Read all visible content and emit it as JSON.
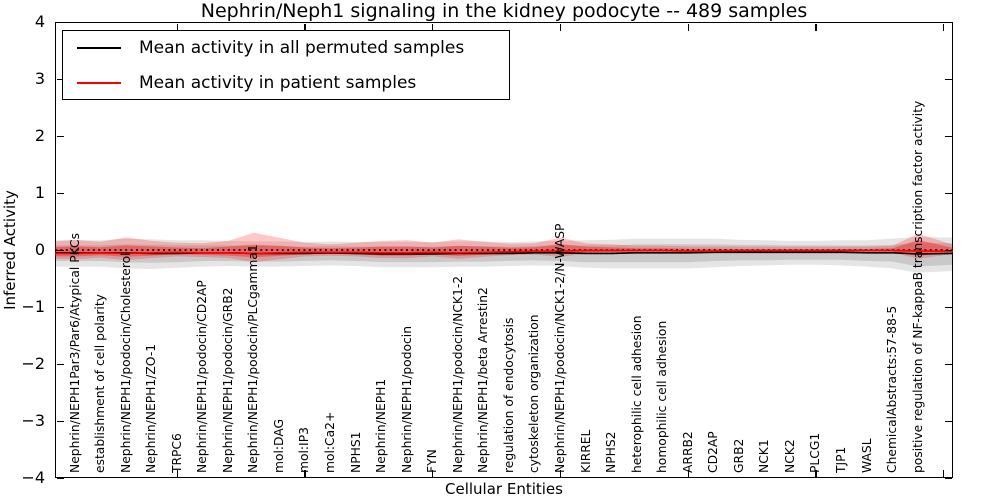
{
  "figure": {
    "title": "Nephrin/Neph1 signaling in the kidney podocyte -- 489 samples",
    "xlabel": "Cellular Entities",
    "ylabel": "Inferred Activity"
  },
  "legend": {
    "items": [
      {
        "label": "Mean activity in all permuted samples",
        "color": "#000000"
      },
      {
        "label": "Mean activity in patient samples",
        "color": "#ff0000"
      }
    ]
  },
  "chart_data": {
    "type": "line",
    "title": "Nephrin/Neph1 signaling in the kidney podocyte -- 489 samples",
    "xlabel": "Cellular Entities",
    "ylabel": "Inferred Activity",
    "ylim": [
      -4,
      4
    ],
    "grid": false,
    "legend_position": "upper left",
    "y_ticks": [
      4,
      3,
      2,
      1,
      0,
      -1,
      -2,
      -3,
      -4
    ],
    "y_tick_labels": [
      "4",
      "3",
      "2",
      "1",
      "0",
      "−1",
      "−2",
      "−3",
      "−4"
    ],
    "x_tick_values": [
      5,
      10,
      15,
      20,
      25,
      30,
      35
    ],
    "zero_line": 0,
    "categories": [
      "Nephrin/NEPH1Par3/Par6/Atypical PKCs",
      "establishment of cell polarity",
      "Nephrin/NEPH1/podocin/Cholesterol",
      "Nephrin/NEPH1/ZO-1",
      "TRPC6",
      "Nephrin/NEPH1/podocin/CD2AP",
      "Nephrin/NEPH1/podocin/GRB2",
      "Nephrin/NEPH1/podocin/PLCgamma1",
      "mol:DAG",
      "mol:IP3",
      "mol:Ca2+",
      "NPHS1",
      "Nephrin/NEPH1",
      "Nephrin/NEPH1/podocin",
      "FYN",
      "Nephrin/NEPH1/podocin/NCK1-2",
      "Nephrin/NEPH1/beta Arrestin2",
      "regulation of endocytosis",
      "cytoskeleton organization",
      "Nephrin/NEPH1/podocin/NCK1-2/N-WASP",
      "KIRREL",
      "NPHS2",
      "heterophilic cell adhesion",
      "homophilic cell adhesion",
      "ARRB2",
      "CD2AP",
      "GRB2",
      "NCK1",
      "NCK2",
      "PLCG1",
      "TJP1",
      "WASL",
      "ChemicalAbstracts:57-88-5",
      "positive regulation of NF-kappaB transcription factor activity"
    ],
    "series": [
      {
        "name": "Mean activity in all permuted samples",
        "color": "#000000",
        "values": [
          -0.05,
          -0.05,
          -0.05,
          -0.06,
          -0.06,
          -0.05,
          -0.05,
          -0.06,
          -0.06,
          -0.06,
          -0.05,
          -0.06,
          -0.07,
          -0.07,
          -0.07,
          -0.06,
          -0.06,
          -0.06,
          -0.05,
          -0.05,
          -0.06,
          -0.06,
          -0.05,
          -0.05,
          -0.05,
          -0.04,
          -0.04,
          -0.04,
          -0.04,
          -0.04,
          -0.04,
          -0.05,
          -0.05,
          -0.07
        ]
      },
      {
        "name": "Mean activity in patient samples",
        "color": "#ff0000",
        "values": [
          -0.06,
          -0.05,
          -0.06,
          -0.05,
          -0.04,
          -0.05,
          -0.05,
          -0.06,
          -0.05,
          -0.04,
          -0.04,
          -0.04,
          -0.05,
          -0.05,
          -0.04,
          -0.05,
          -0.04,
          -0.03,
          -0.02,
          -0.02,
          -0.01,
          -0.01,
          -0.01,
          -0.01,
          -0.02,
          -0.02,
          -0.01,
          -0.01,
          -0.01,
          -0.01,
          -0.01,
          -0.01,
          -0.01,
          -0.02
        ]
      }
    ],
    "bands": [
      {
        "name": "permuted-outer-band",
        "center": 0,
        "color": "rgba(0,0,0,0.10)",
        "up_scale": 1.0,
        "down_scale": 1.1,
        "half_widths": [
          0.22,
          0.22,
          0.25,
          0.25,
          0.23,
          0.22,
          0.21,
          0.21,
          0.21,
          0.2,
          0.2,
          0.2,
          0.21,
          0.21,
          0.21,
          0.21,
          0.21,
          0.2,
          0.2,
          0.21,
          0.23,
          0.24,
          0.25,
          0.25,
          0.25,
          0.24,
          0.22,
          0.21,
          0.2,
          0.2,
          0.21,
          0.22,
          0.25,
          0.3
        ],
        "edge_left": 0.22,
        "edge_right": 0.28
      },
      {
        "name": "permuted-inner-band",
        "center": 0,
        "color": "rgba(0,0,0,0.12)",
        "up_scale": 1.0,
        "down_scale": 1.1,
        "half_widths": [
          0.13,
          0.13,
          0.15,
          0.15,
          0.14,
          0.13,
          0.13,
          0.13,
          0.13,
          0.12,
          0.12,
          0.12,
          0.13,
          0.13,
          0.13,
          0.13,
          0.13,
          0.12,
          0.12,
          0.13,
          0.14,
          0.14,
          0.15,
          0.15,
          0.15,
          0.14,
          0.13,
          0.13,
          0.12,
          0.12,
          0.12,
          0.13,
          0.14,
          0.2
        ],
        "edge_left": 0.13,
        "edge_right": 0.18
      },
      {
        "name": "patient-outer-band",
        "center": 1,
        "color": "rgba(255,0,0,0.22)",
        "up_scale": 1.4,
        "down_scale": 0.6,
        "half_widths": [
          0.17,
          0.14,
          0.2,
          0.15,
          0.12,
          0.12,
          0.15,
          0.26,
          0.19,
          0.12,
          0.1,
          0.12,
          0.15,
          0.16,
          0.12,
          0.17,
          0.13,
          0.1,
          0.1,
          0.17,
          0.09,
          0.08,
          0.06,
          0.06,
          0.06,
          0.06,
          0.05,
          0.05,
          0.05,
          0.05,
          0.05,
          0.05,
          0.06,
          0.22
        ],
        "edge_left": 0.15,
        "edge_right": 0.08
      },
      {
        "name": "patient-inner-band",
        "center": 1,
        "color": "rgba(255,0,0,0.35)",
        "up_scale": 1.4,
        "down_scale": 0.6,
        "half_widths": [
          0.09,
          0.07,
          0.1,
          0.08,
          0.06,
          0.06,
          0.08,
          0.11,
          0.09,
          0.06,
          0.05,
          0.06,
          0.08,
          0.08,
          0.06,
          0.09,
          0.07,
          0.05,
          0.05,
          0.09,
          0.05,
          0.04,
          0.03,
          0.03,
          0.03,
          0.03,
          0.02,
          0.02,
          0.02,
          0.02,
          0.02,
          0.02,
          0.03,
          0.14
        ],
        "edge_left": 0.08,
        "edge_right": 0.04
      }
    ],
    "series_edges": {
      "permuted_left": -0.05,
      "permuted_right": -0.06,
      "patient_left": -0.06,
      "patient_right": -0.02
    }
  }
}
